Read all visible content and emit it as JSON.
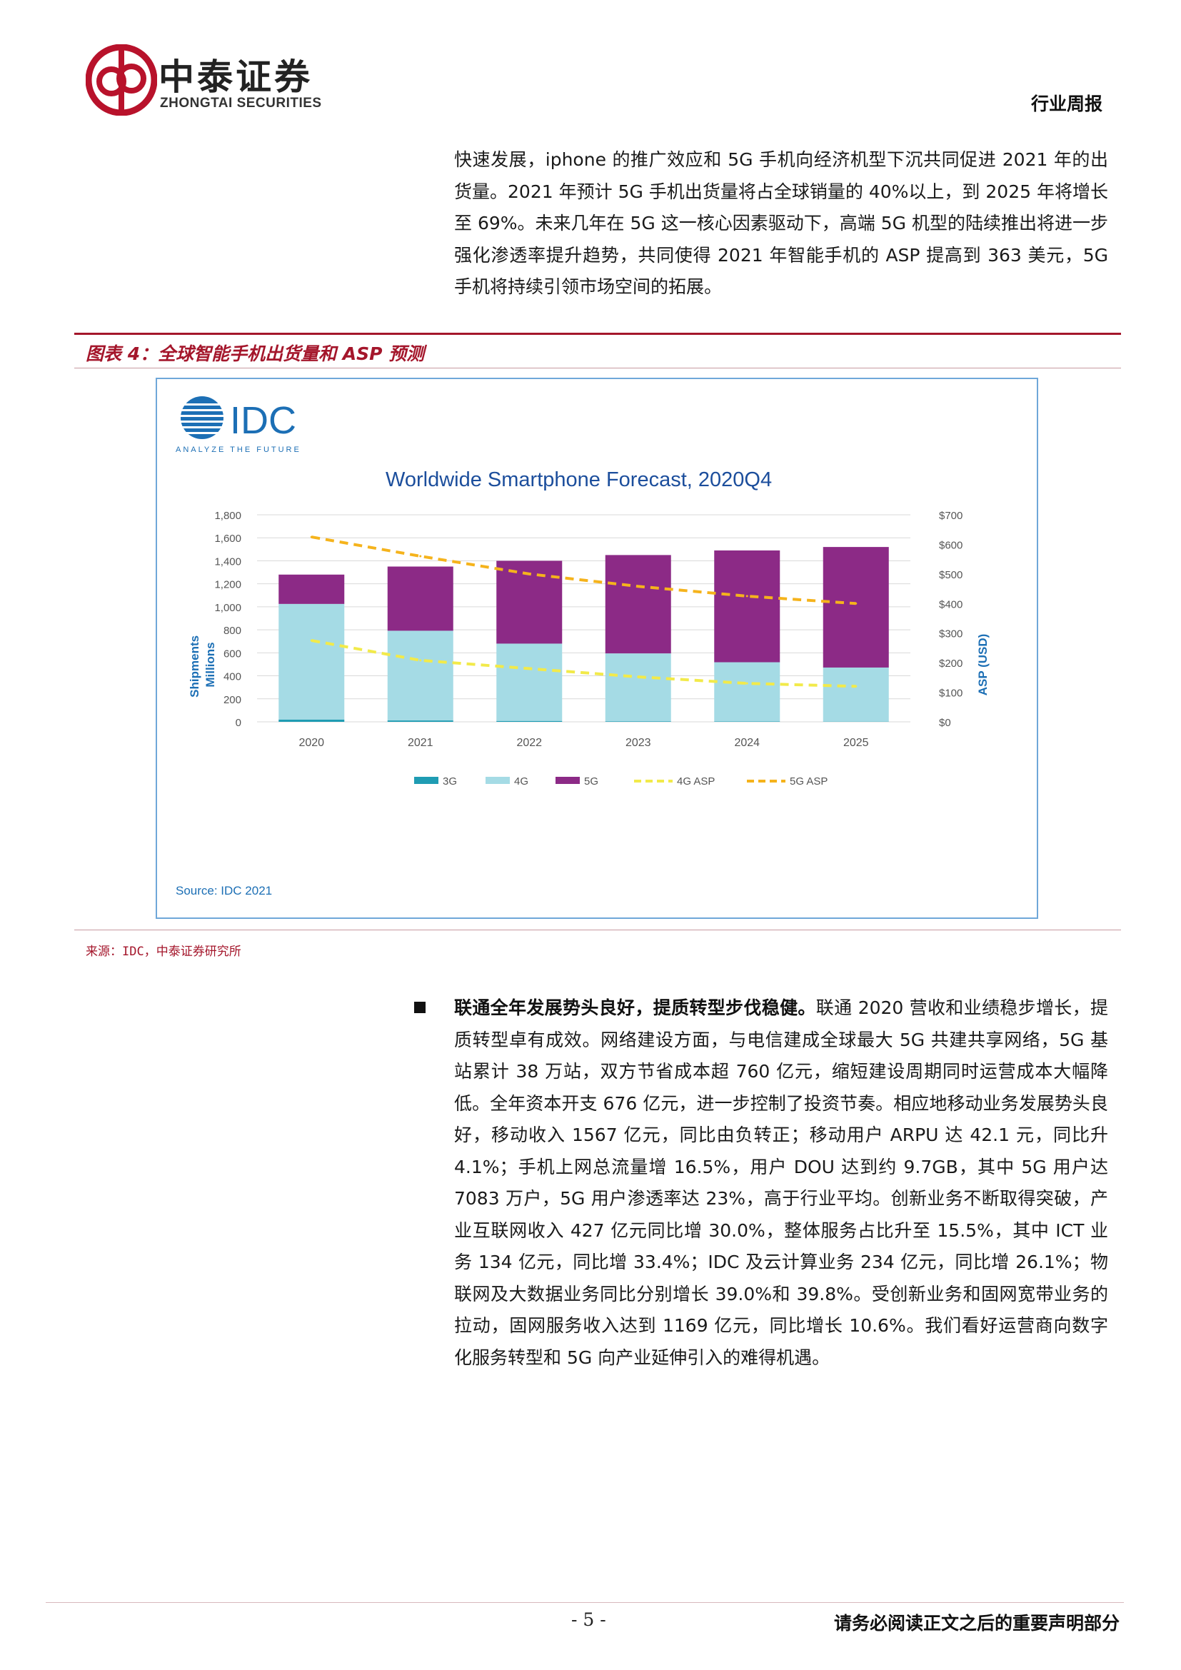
{
  "header": {
    "company_cn": "中泰证券",
    "company_en": "ZHONGTAI SECURITIES",
    "doc_type": "行业周报"
  },
  "intro_paragraph": "快速发展，iphone 的推广效应和 5G 手机向经济机型下沉共同促进 2021 年的出货量。2021 年预计 5G 手机出货量将占全球销量的 40%以上，到 2025 年将增长至 69%。未来几年在 5G 这一核心因素驱动下，高端 5G 机型的陆续推出将进一步强化渗透率提升趋势，共同使得 2021 年智能手机的 ASP 提高到 363 美元，5G 手机将持续引领市场空间的拓展。",
  "figure": {
    "title": "图表 4：全球智能手机出货量和 ASP 预测",
    "source": "来源：IDC，中泰证券研究所"
  },
  "chart_data": {
    "type": "bar",
    "subtype": "stacked bar with line overlay (secondary axis)",
    "brand": "IDC",
    "brand_tagline": "ANALYZE THE FUTURE",
    "title": "Worldwide Smartphone Forecast, 2020Q4",
    "categories": [
      "2020",
      "2021",
      "2022",
      "2023",
      "2024",
      "2025"
    ],
    "series": [
      {
        "name": "3G",
        "kind": "bar",
        "axis": "left",
        "color": "#1f9cb3",
        "values": [
          20,
          12,
          8,
          5,
          3,
          2
        ]
      },
      {
        "name": "4G",
        "kind": "bar",
        "axis": "left",
        "color": "#a5dbe5",
        "values": [
          1005,
          780,
          672,
          590,
          515,
          470
        ]
      },
      {
        "name": "5G",
        "kind": "bar",
        "axis": "left",
        "color": "#8c2a86",
        "values": [
          255,
          558,
          720,
          855,
          972,
          1048
        ]
      },
      {
        "name": "4G ASP",
        "kind": "line",
        "axis": "right",
        "color": "#f2ea4a",
        "values": [
          275,
          208,
          180,
          152,
          130,
          120
        ]
      },
      {
        "name": "5G ASP",
        "kind": "line",
        "axis": "right",
        "color": "#f5b31c",
        "values": [
          625,
          560,
          500,
          458,
          425,
          400
        ]
      }
    ],
    "ylabel": "Shipments\nMillions",
    "ylim": [
      0,
      1800
    ],
    "yticks": [
      "0",
      "200",
      "400",
      "600",
      "800",
      "1,000",
      "1,200",
      "1,400",
      "1,600",
      "1,800"
    ],
    "y2label": "ASP (USD)",
    "y2lim": [
      0,
      700
    ],
    "y2ticks": [
      "$0",
      "$100",
      "$200",
      "$300",
      "$400",
      "$500",
      "$600",
      "$700"
    ],
    "grid": true,
    "legend": "bottom",
    "source_note": "Source: IDC 2021"
  },
  "body_section": {
    "lead": "联通全年发展势头良好，提质转型步伐稳健。",
    "text": "联通 2020 营收和业绩稳步增长，提质转型卓有成效。网络建设方面，与电信建成全球最大 5G 共建共享网络，5G 基站累计 38 万站，双方节省成本超 760 亿元，缩短建设周期同时运营成本大幅降低。全年资本开支 676 亿元，进一步控制了投资节奏。相应地移动业务发展势头良好，移动收入 1567 亿元，同比由负转正；移动用户 ARPU 达 42.1 元，同比升 4.1%；手机上网总流量增 16.5%，用户 DOU 达到约 9.7GB，其中 5G 用户达 7083 万户，5G 用户渗透率达 23%，高于行业平均。创新业务不断取得突破，产业互联网收入 427 亿元同比增 30.0%，整体服务占比升至 15.5%，其中 ICT 业务 134 亿元，同比增 33.4%；IDC 及云计算业务 234 亿元，同比增 26.1%；物联网及大数据业务同比分别增长 39.0%和 39.8%。受创新业务和固网宽带业务的拉动，固网服务收入达到 1169 亿元，同比增长 10.6%。我们看好运营商向数字化服务转型和 5G 向产业延伸引入的难得机遇。"
  },
  "footer": {
    "page_number": "- 5 -",
    "notice": "请务必阅读正文之后的重要声明部分"
  }
}
